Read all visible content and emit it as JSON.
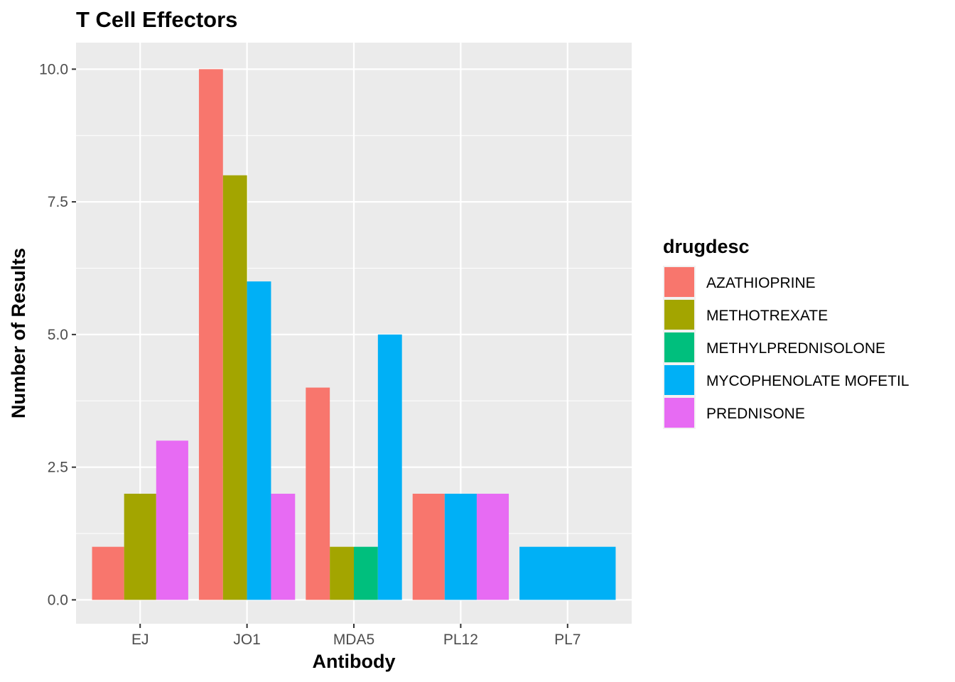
{
  "chart_data": {
    "type": "bar",
    "title": "T Cell Effectors",
    "xlabel": "Antibody",
    "ylabel": "Number of Results",
    "categories": [
      "EJ",
      "JO1",
      "MDA5",
      "PL12",
      "PL7"
    ],
    "ylim": [
      -0.45,
      10.5
    ],
    "yticks": [
      0.0,
      2.5,
      5.0,
      7.5,
      10.0
    ],
    "ytick_labels": [
      "0.0",
      "2.5",
      "5.0",
      "7.5",
      "10.0"
    ],
    "grid": true,
    "legend_position": "right",
    "legend_title": "drugdesc",
    "background": "#ebebeb",
    "series": [
      {
        "name": "AZATHIOPRINE",
        "color": "#F8766D",
        "values": [
          1,
          10,
          4,
          2,
          null
        ]
      },
      {
        "name": "METHOTREXATE",
        "color": "#A3A500",
        "values": [
          2,
          8,
          1,
          null,
          null
        ]
      },
      {
        "name": "METHYLPREDNISOLONE",
        "color": "#00BF7D",
        "values": [
          null,
          null,
          1,
          null,
          null
        ]
      },
      {
        "name": "MYCOPHENOLATE MOFETIL",
        "color": "#00B0F6",
        "values": [
          null,
          6,
          5,
          2,
          1
        ]
      },
      {
        "name": "PREDNISONE",
        "color": "#E76BF3",
        "values": [
          3,
          2,
          null,
          2,
          null
        ]
      }
    ]
  }
}
